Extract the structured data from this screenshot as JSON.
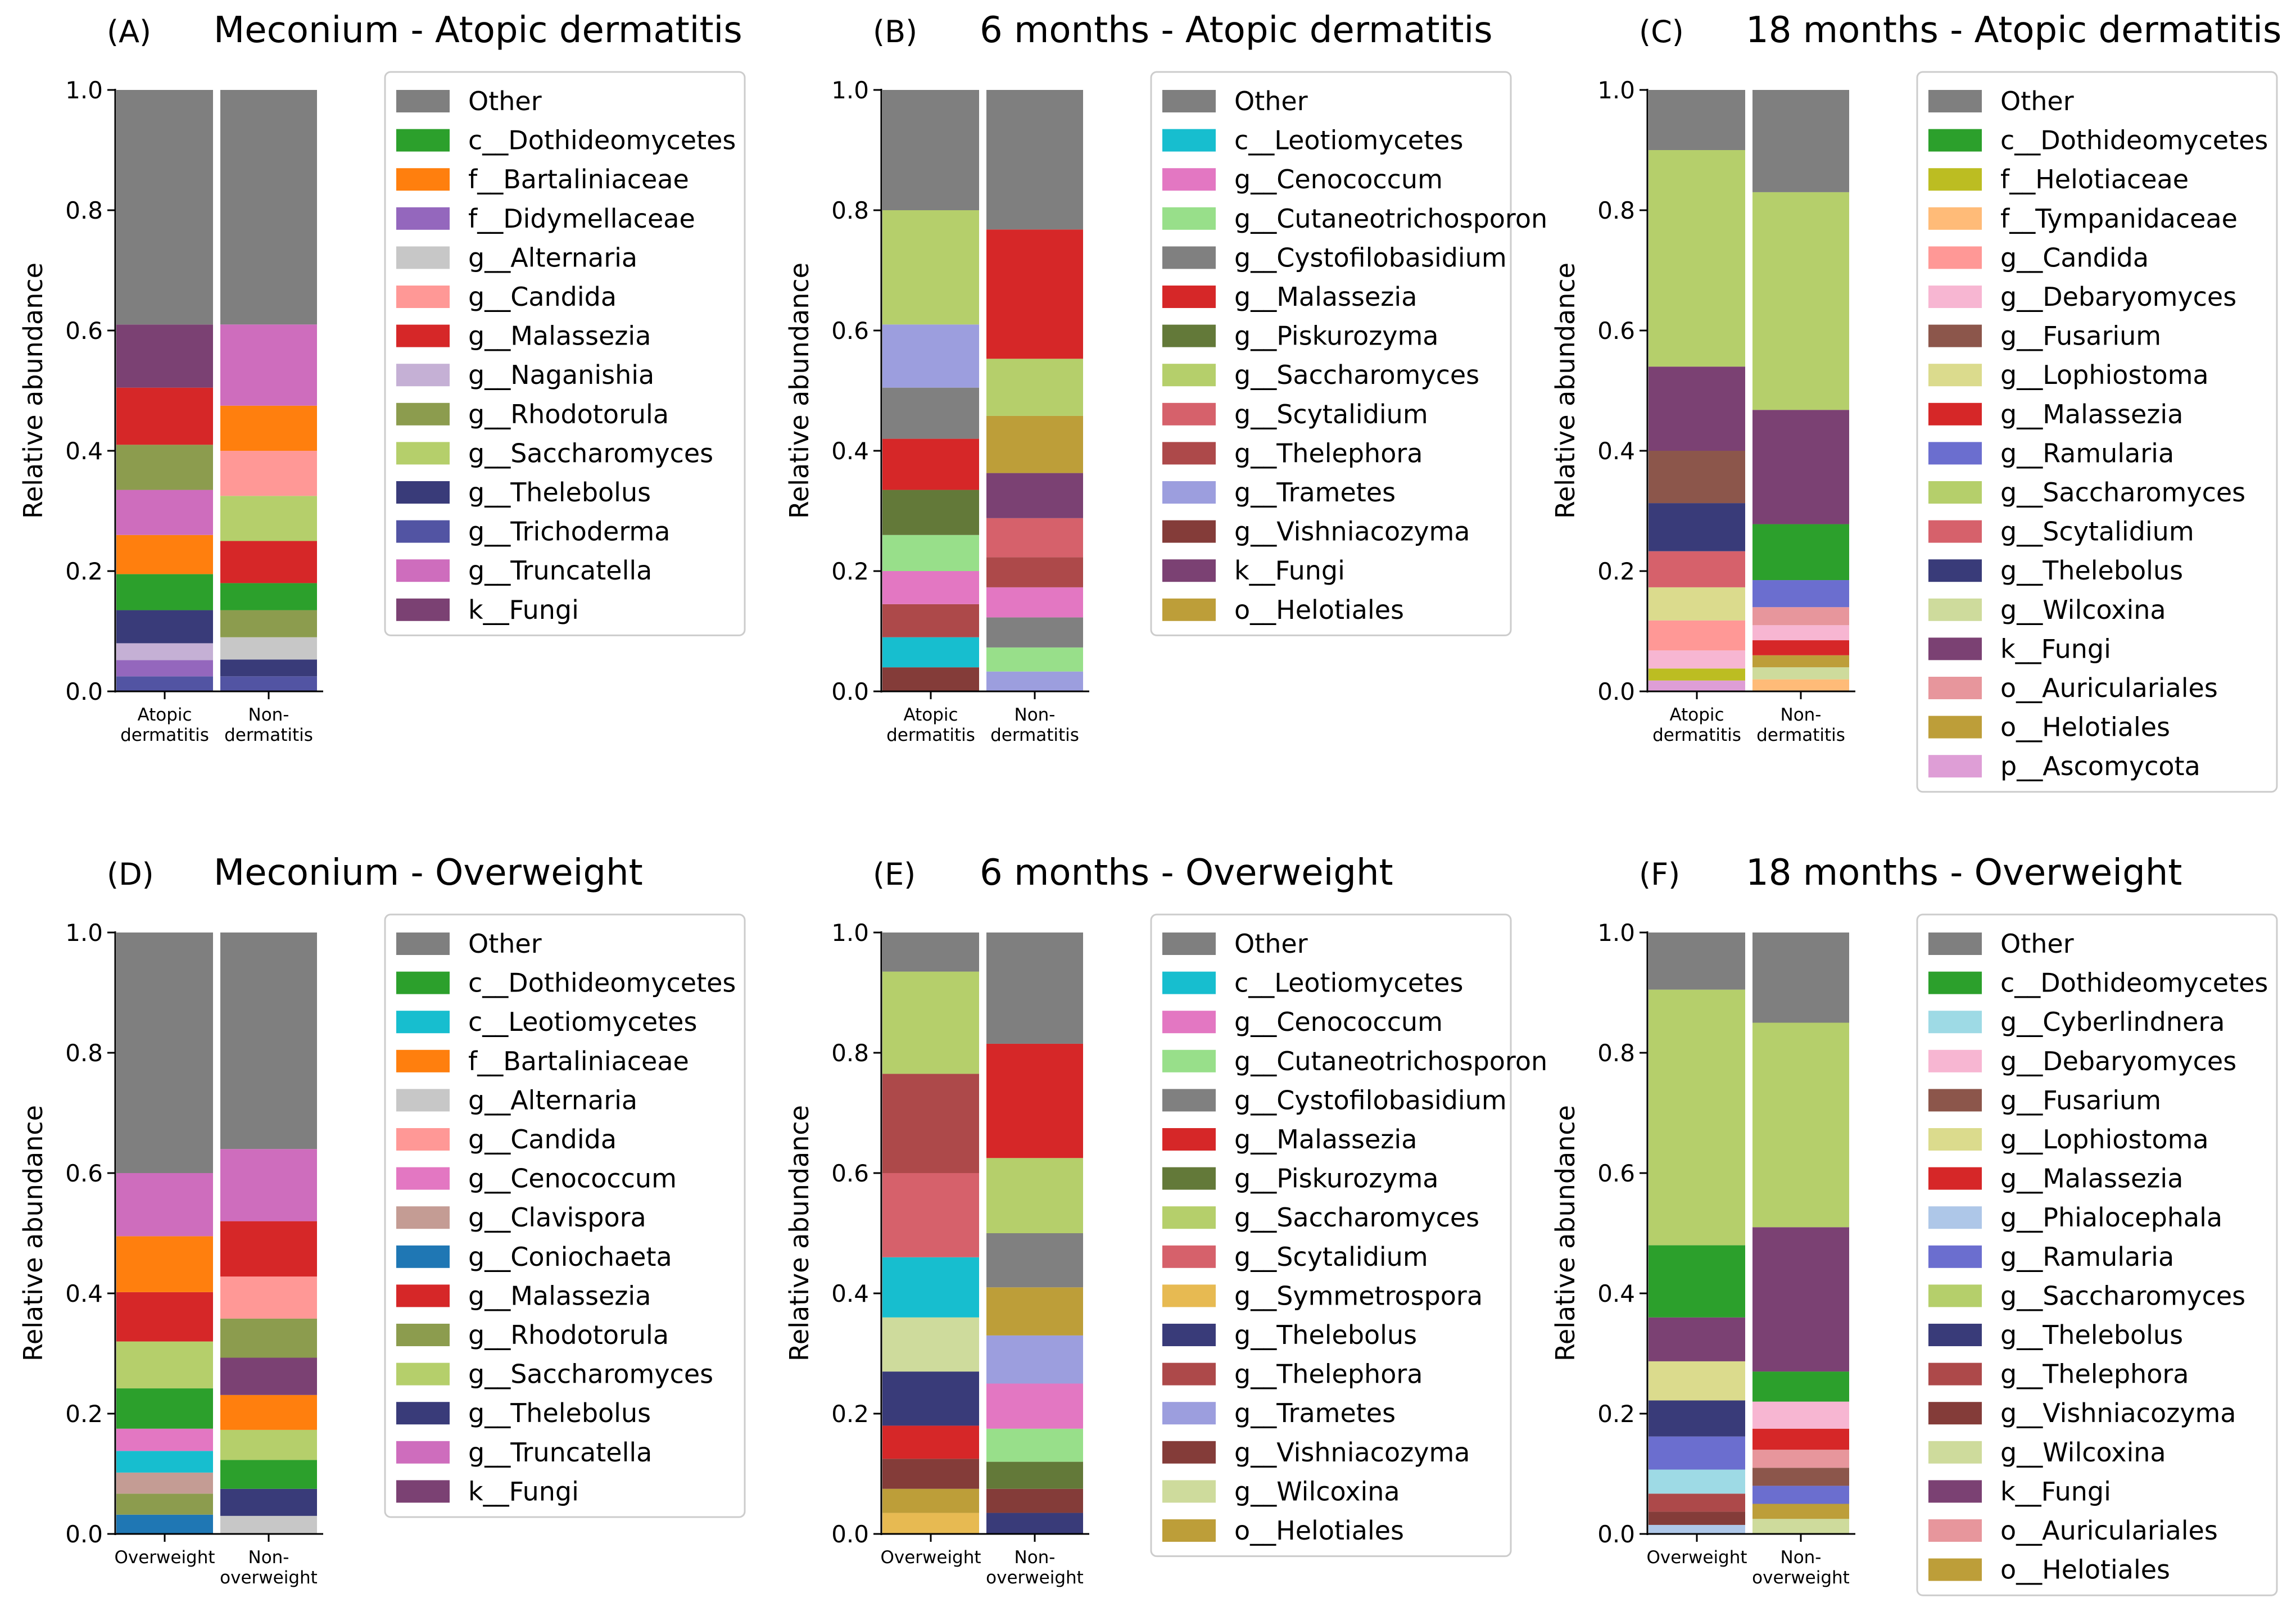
{
  "chart_data": [
    {
      "id": "A",
      "type": "stacked-bar",
      "panel_letter": "(A)",
      "title": "Meconium - Atopic dermatitis",
      "ylabel": "Relative abundance",
      "ylim": [
        0,
        1
      ],
      "yticks": [
        "0.0",
        "0.2",
        "0.4",
        "0.6",
        "0.8",
        "1.0"
      ],
      "categories": [
        [
          "Atopic",
          "dermatitis"
        ],
        [
          "Non-",
          "dermatitis"
        ]
      ],
      "legend": [
        "Other",
        "c__Dothideomycetes",
        "f__Bartaliniaceae",
        "f__Didymellaceae",
        "g__Alternaria",
        "g__Candida",
        "g__Malassezia",
        "g__Naganishia",
        "g__Rhodotorula",
        "g__Saccharomyces",
        "g__Thelebolus",
        "g__Trichoderma",
        "g__Truncatella",
        "k__Fungi"
      ],
      "colors": [
        "#7f7f7f",
        "#2ca02c",
        "#ff7f0e",
        "#9467bd",
        "#c7c7c7",
        "#ff9896",
        "#d62728",
        "#c5b0d5",
        "#8c9c4e",
        "#b5cf6b",
        "#393b79",
        "#5254a3",
        "#ce6dbd",
        "#7b4173"
      ],
      "bars": [
        [
          [
            "g__Trichoderma",
            0.025
          ],
          [
            "f__Didymellaceae",
            0.027
          ],
          [
            "g__Naganishia",
            0.028
          ],
          [
            "g__Thelebolus",
            0.055
          ],
          [
            "c__Dothideomycetes",
            0.06
          ],
          [
            "f__Bartaliniaceae",
            0.065
          ],
          [
            "g__Truncatella",
            0.075
          ],
          [
            "g__Rhodotorula",
            0.075
          ],
          [
            "g__Malassezia",
            0.095
          ],
          [
            "k__Fungi",
            0.105
          ],
          [
            "Other",
            0.39
          ]
        ],
        [
          [
            "g__Trichoderma",
            0.025
          ],
          [
            "g__Thelebolus",
            0.028
          ],
          [
            "g__Alternaria",
            0.037
          ],
          [
            "g__Rhodotorula",
            0.045
          ],
          [
            "c__Dothideomycetes",
            0.045
          ],
          [
            "g__Malassezia",
            0.07
          ],
          [
            "g__Saccharomyces",
            0.075
          ],
          [
            "g__Candida",
            0.075
          ],
          [
            "f__Bartaliniaceae",
            0.075
          ],
          [
            "g__Truncatella",
            0.135
          ],
          [
            "Other",
            0.39
          ]
        ]
      ]
    },
    {
      "id": "B",
      "type": "stacked-bar",
      "panel_letter": "(B)",
      "title": "6 months - Atopic dermatitis",
      "ylabel": "Relative abundance",
      "ylim": [
        0,
        1
      ],
      "yticks": [
        "0.0",
        "0.2",
        "0.4",
        "0.6",
        "0.8",
        "1.0"
      ],
      "categories": [
        [
          "Atopic",
          "dermatitis"
        ],
        [
          "Non-",
          "dermatitis"
        ]
      ],
      "legend": [
        "Other",
        "c__Leotiomycetes",
        "g__Cenococcum",
        "g__Cutaneotrichosporon",
        "g__Cystofilobasidium",
        "g__Malassezia",
        "g__Piskurozyma",
        "g__Saccharomyces",
        "g__Scytalidium",
        "g__Thelephora",
        "g__Trametes",
        "g__Vishniacozyma",
        "k__Fungi",
        "o__Helotiales"
      ],
      "colors": [
        "#7f7f7f",
        "#17becf",
        "#e377c2",
        "#98df8a",
        "#808080",
        "#d62728",
        "#637939",
        "#b5cf6b",
        "#d6616b",
        "#ad494a",
        "#9c9ede",
        "#843c39",
        "#7b4173",
        "#bd9e39"
      ],
      "bars": [
        [
          [
            "g__Vishniacozyma",
            0.04
          ],
          [
            "c__Leotiomycetes",
            0.05
          ],
          [
            "g__Thelephora",
            0.055
          ],
          [
            "g__Cenococcum",
            0.055
          ],
          [
            "g__Cutaneotrichosporon",
            0.06
          ],
          [
            "g__Piskurozyma",
            0.075
          ],
          [
            "g__Malassezia",
            0.085
          ],
          [
            "g__Cystofilobasidium",
            0.085
          ],
          [
            "g__Trametes",
            0.105
          ],
          [
            "g__Saccharomyces",
            0.19
          ],
          [
            "Other",
            0.2
          ]
        ],
        [
          [
            "g__Trametes",
            0.033
          ],
          [
            "g__Cutaneotrichosporon",
            0.04
          ],
          [
            "g__Cystofilobasidium",
            0.05
          ],
          [
            "g__Cenococcum",
            0.05
          ],
          [
            "g__Thelephora",
            0.05
          ],
          [
            "g__Scytalidium",
            0.065
          ],
          [
            "k__Fungi",
            0.075
          ],
          [
            "o__Helotiales",
            0.095
          ],
          [
            "g__Saccharomyces",
            0.095
          ],
          [
            "g__Malassezia",
            0.215
          ],
          [
            "Other",
            0.232
          ]
        ]
      ]
    },
    {
      "id": "C",
      "type": "stacked-bar",
      "panel_letter": "(C)",
      "title": "18 months - Atopic dermatitis",
      "ylabel": "Relative abundance",
      "ylim": [
        0,
        1
      ],
      "yticks": [
        "0.0",
        "0.2",
        "0.4",
        "0.6",
        "0.8",
        "1.0"
      ],
      "categories": [
        [
          "Atopic",
          "dermatitis"
        ],
        [
          "Non-",
          "dermatitis"
        ]
      ],
      "legend": [
        "Other",
        "c__Dothideomycetes",
        "f__Helotiaceae",
        "f__Tympanidaceae",
        "g__Candida",
        "g__Debaryomyces",
        "g__Fusarium",
        "g__Lophiostoma",
        "g__Malassezia",
        "g__Ramularia",
        "g__Saccharomyces",
        "g__Scytalidium",
        "g__Thelebolus",
        "g__Wilcoxina",
        "k__Fungi",
        "o__Auriculariales",
        "o__Helotiales",
        "p__Ascomycota"
      ],
      "colors": [
        "#7f7f7f",
        "#2ca02c",
        "#bcbd22",
        "#ffbb78",
        "#ff9896",
        "#f7b6d2",
        "#8c564b",
        "#dbdb8d",
        "#d62728",
        "#6b6ecf",
        "#b5cf6b",
        "#d6616b",
        "#393b79",
        "#cedb9c",
        "#7b4173",
        "#e7969c",
        "#bd9e39",
        "#de9ed6"
      ],
      "bars": [
        [
          [
            "p__Ascomycota",
            0.018
          ],
          [
            "f__Helotiaceae",
            0.02
          ],
          [
            "g__Debaryomyces",
            0.03
          ],
          [
            "g__Candida",
            0.05
          ],
          [
            "g__Lophiostoma",
            0.055
          ],
          [
            "g__Scytalidium",
            0.06
          ],
          [
            "g__Thelebolus",
            0.08
          ],
          [
            "g__Fusarium",
            0.087
          ],
          [
            "k__Fungi",
            0.14
          ],
          [
            "g__Saccharomyces",
            0.36
          ],
          [
            "Other",
            0.1
          ]
        ],
        [
          [
            "f__Tympanidaceae",
            0.02
          ],
          [
            "g__Wilcoxina",
            0.02
          ],
          [
            "o__Helotiales",
            0.02
          ],
          [
            "g__Malassezia",
            0.025
          ],
          [
            "g__Debaryomyces",
            0.025
          ],
          [
            "o__Auriculariales",
            0.03
          ],
          [
            "g__Ramularia",
            0.045
          ],
          [
            "c__Dothideomycetes",
            0.093
          ],
          [
            "k__Fungi",
            0.19
          ],
          [
            "g__Saccharomyces",
            0.362
          ],
          [
            "Other",
            0.17
          ]
        ]
      ]
    },
    {
      "id": "D",
      "type": "stacked-bar",
      "panel_letter": "(D)",
      "title": "Meconium - Overweight",
      "ylabel": "Relative abundance",
      "ylim": [
        0,
        1
      ],
      "yticks": [
        "0.0",
        "0.2",
        "0.4",
        "0.6",
        "0.8",
        "1.0"
      ],
      "categories": [
        [
          "Overweight"
        ],
        [
          "Non-",
          "overweight"
        ]
      ],
      "legend": [
        "Other",
        "c__Dothideomycetes",
        "c__Leotiomycetes",
        "f__Bartaliniaceae",
        "g__Alternaria",
        "g__Candida",
        "g__Cenococcum",
        "g__Clavispora",
        "g__Coniochaeta",
        "g__Malassezia",
        "g__Rhodotorula",
        "g__Saccharomyces",
        "g__Thelebolus",
        "g__Truncatella",
        "k__Fungi"
      ],
      "colors": [
        "#7f7f7f",
        "#2ca02c",
        "#17becf",
        "#ff7f0e",
        "#c7c7c7",
        "#ff9896",
        "#e377c2",
        "#c49c94",
        "#1f77b4",
        "#d62728",
        "#8c9c4e",
        "#b5cf6b",
        "#393b79",
        "#ce6dbd",
        "#7b4173"
      ],
      "bars": [
        [
          [
            "g__Coniochaeta",
            0.032
          ],
          [
            "g__Rhodotorula",
            0.035
          ],
          [
            "g__Clavispora",
            0.035
          ],
          [
            "c__Leotiomycetes",
            0.036
          ],
          [
            "g__Cenococcum",
            0.037
          ],
          [
            "c__Dothideomycetes",
            0.067
          ],
          [
            "g__Saccharomyces",
            0.078
          ],
          [
            "g__Malassezia",
            0.082
          ],
          [
            "f__Bartaliniaceae",
            0.093
          ],
          [
            "g__Truncatella",
            0.105
          ],
          [
            "Other",
            0.4
          ]
        ],
        [
          [
            "g__Alternaria",
            0.03
          ],
          [
            "g__Thelebolus",
            0.045
          ],
          [
            "c__Dothideomycetes",
            0.048
          ],
          [
            "g__Saccharomyces",
            0.05
          ],
          [
            "f__Bartaliniaceae",
            0.058
          ],
          [
            "k__Fungi",
            0.062
          ],
          [
            "g__Rhodotorula",
            0.065
          ],
          [
            "g__Candida",
            0.07
          ],
          [
            "g__Malassezia",
            0.092
          ],
          [
            "g__Truncatella",
            0.12
          ],
          [
            "Other",
            0.36
          ]
        ]
      ]
    },
    {
      "id": "E",
      "type": "stacked-bar",
      "panel_letter": "(E)",
      "title": "6 months - Overweight",
      "ylabel": "Relative abundance",
      "ylim": [
        0,
        1
      ],
      "yticks": [
        "0.0",
        "0.2",
        "0.4",
        "0.6",
        "0.8",
        "1.0"
      ],
      "categories": [
        [
          "Overweight"
        ],
        [
          "Non-",
          "overweight"
        ]
      ],
      "legend": [
        "Other",
        "c__Leotiomycetes",
        "g__Cenococcum",
        "g__Cutaneotrichosporon",
        "g__Cystofilobasidium",
        "g__Malassezia",
        "g__Piskurozyma",
        "g__Saccharomyces",
        "g__Scytalidium",
        "g__Symmetrospora",
        "g__Thelebolus",
        "g__Thelephora",
        "g__Trametes",
        "g__Vishniacozyma",
        "g__Wilcoxina",
        "o__Helotiales"
      ],
      "colors": [
        "#7f7f7f",
        "#17becf",
        "#e377c2",
        "#98df8a",
        "#808080",
        "#d62728",
        "#637939",
        "#b5cf6b",
        "#d6616b",
        "#e7ba52",
        "#393b79",
        "#ad494a",
        "#9c9ede",
        "#843c39",
        "#cedb9c",
        "#bd9e39"
      ],
      "bars": [
        [
          [
            "g__Symmetrospora",
            0.035
          ],
          [
            "o__Helotiales",
            0.04
          ],
          [
            "g__Vishniacozyma",
            0.05
          ],
          [
            "g__Malassezia",
            0.055
          ],
          [
            "g__Thelebolus",
            0.09
          ],
          [
            "g__Wilcoxina",
            0.09
          ],
          [
            "c__Leotiomycetes",
            0.1
          ],
          [
            "g__Scytalidium",
            0.14
          ],
          [
            "g__Thelephora",
            0.165
          ],
          [
            "g__Saccharomyces",
            0.17
          ],
          [
            "Other",
            0.065
          ]
        ],
        [
          [
            "g__Thelebolus",
            0.035
          ],
          [
            "g__Vishniacozyma",
            0.04
          ],
          [
            "g__Piskurozyma",
            0.045
          ],
          [
            "g__Cutaneotrichosporon",
            0.055
          ],
          [
            "g__Cenococcum",
            0.075
          ],
          [
            "g__Trametes",
            0.08
          ],
          [
            "o__Helotiales",
            0.08
          ],
          [
            "g__Cystofilobasidium",
            0.09
          ],
          [
            "g__Saccharomyces",
            0.125
          ],
          [
            "g__Malassezia",
            0.19
          ],
          [
            "Other",
            0.185
          ]
        ]
      ]
    },
    {
      "id": "F",
      "type": "stacked-bar",
      "panel_letter": "(F)",
      "title": "18 months - Overweight",
      "ylabel": "Relative abundance",
      "ylim": [
        0,
        1
      ],
      "yticks": [
        "0.0",
        "0.2",
        "0.4",
        "0.6",
        "0.8",
        "1.0"
      ],
      "categories": [
        [
          "Overweight"
        ],
        [
          "Non-",
          "overweight"
        ]
      ],
      "legend": [
        "Other",
        "c__Dothideomycetes",
        "g__Cyberlindnera",
        "g__Debaryomyces",
        "g__Fusarium",
        "g__Lophiostoma",
        "g__Malassezia",
        "g__Phialocephala",
        "g__Ramularia",
        "g__Saccharomyces",
        "g__Thelebolus",
        "g__Thelephora",
        "g__Vishniacozyma",
        "g__Wilcoxina",
        "k__Fungi",
        "o__Auriculariales",
        "o__Helotiales"
      ],
      "colors": [
        "#7f7f7f",
        "#2ca02c",
        "#9edae5",
        "#f7b6d2",
        "#8c564b",
        "#dbdb8d",
        "#d62728",
        "#aec7e8",
        "#6b6ecf",
        "#b5cf6b",
        "#393b79",
        "#ad494a",
        "#843c39",
        "#cedb9c",
        "#7b4173",
        "#e7969c",
        "#bd9e39"
      ],
      "bars": [
        [
          [
            "g__Phialocephala",
            0.015
          ],
          [
            "g__Vishniacozyma",
            0.022
          ],
          [
            "g__Thelephora",
            0.03
          ],
          [
            "g__Cyberlindnera",
            0.04
          ],
          [
            "g__Ramularia",
            0.055
          ],
          [
            "g__Thelebolus",
            0.06
          ],
          [
            "g__Lophiostoma",
            0.065
          ],
          [
            "k__Fungi",
            0.073
          ],
          [
            "c__Dothideomycetes",
            0.12
          ],
          [
            "g__Saccharomyces",
            0.425
          ],
          [
            "Other",
            0.095
          ]
        ],
        [
          [
            "g__Wilcoxina",
            0.025
          ],
          [
            "o__Helotiales",
            0.025
          ],
          [
            "g__Ramularia",
            0.03
          ],
          [
            "g__Fusarium",
            0.03
          ],
          [
            "o__Auriculariales",
            0.03
          ],
          [
            "g__Malassezia",
            0.035
          ],
          [
            "g__Debaryomyces",
            0.045
          ],
          [
            "c__Dothideomycetes",
            0.05
          ],
          [
            "k__Fungi",
            0.24
          ],
          [
            "g__Saccharomyces",
            0.34
          ],
          [
            "Other",
            0.15
          ]
        ]
      ]
    }
  ]
}
